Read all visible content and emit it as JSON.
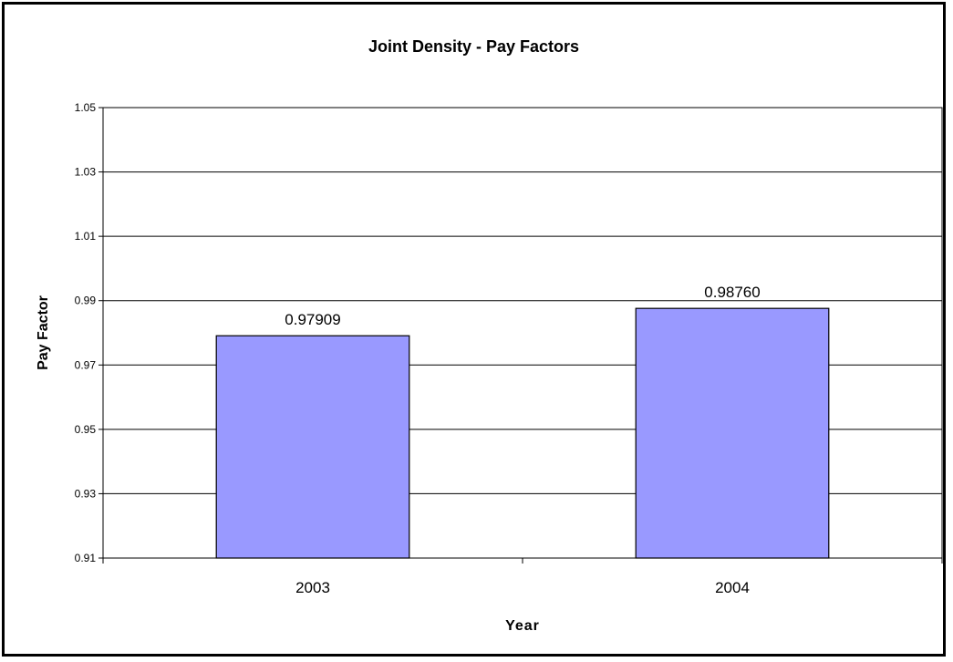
{
  "chart_data": {
    "type": "bar",
    "title": "Joint Density - Pay Factors",
    "xlabel": "Year",
    "ylabel": "Pay Factor",
    "categories": [
      "2003",
      "2004"
    ],
    "values": [
      0.97909,
      0.9876
    ],
    "data_labels": [
      "0.97909",
      "0.98760"
    ],
    "ylim": [
      0.91,
      1.05
    ],
    "yticks": [
      0.91,
      0.93,
      0.95,
      0.97,
      0.99,
      1.01,
      1.03,
      1.05
    ],
    "ytick_labels": [
      "0.91",
      "0.93",
      "0.95",
      "0.97",
      "0.99",
      "1.01",
      "1.03",
      "1.05"
    ],
    "grid": true,
    "legend": "none",
    "colors": {
      "bar": "#9999ff",
      "bar_stroke": "#000000",
      "grid": "#000000",
      "frame": "#000000"
    }
  }
}
